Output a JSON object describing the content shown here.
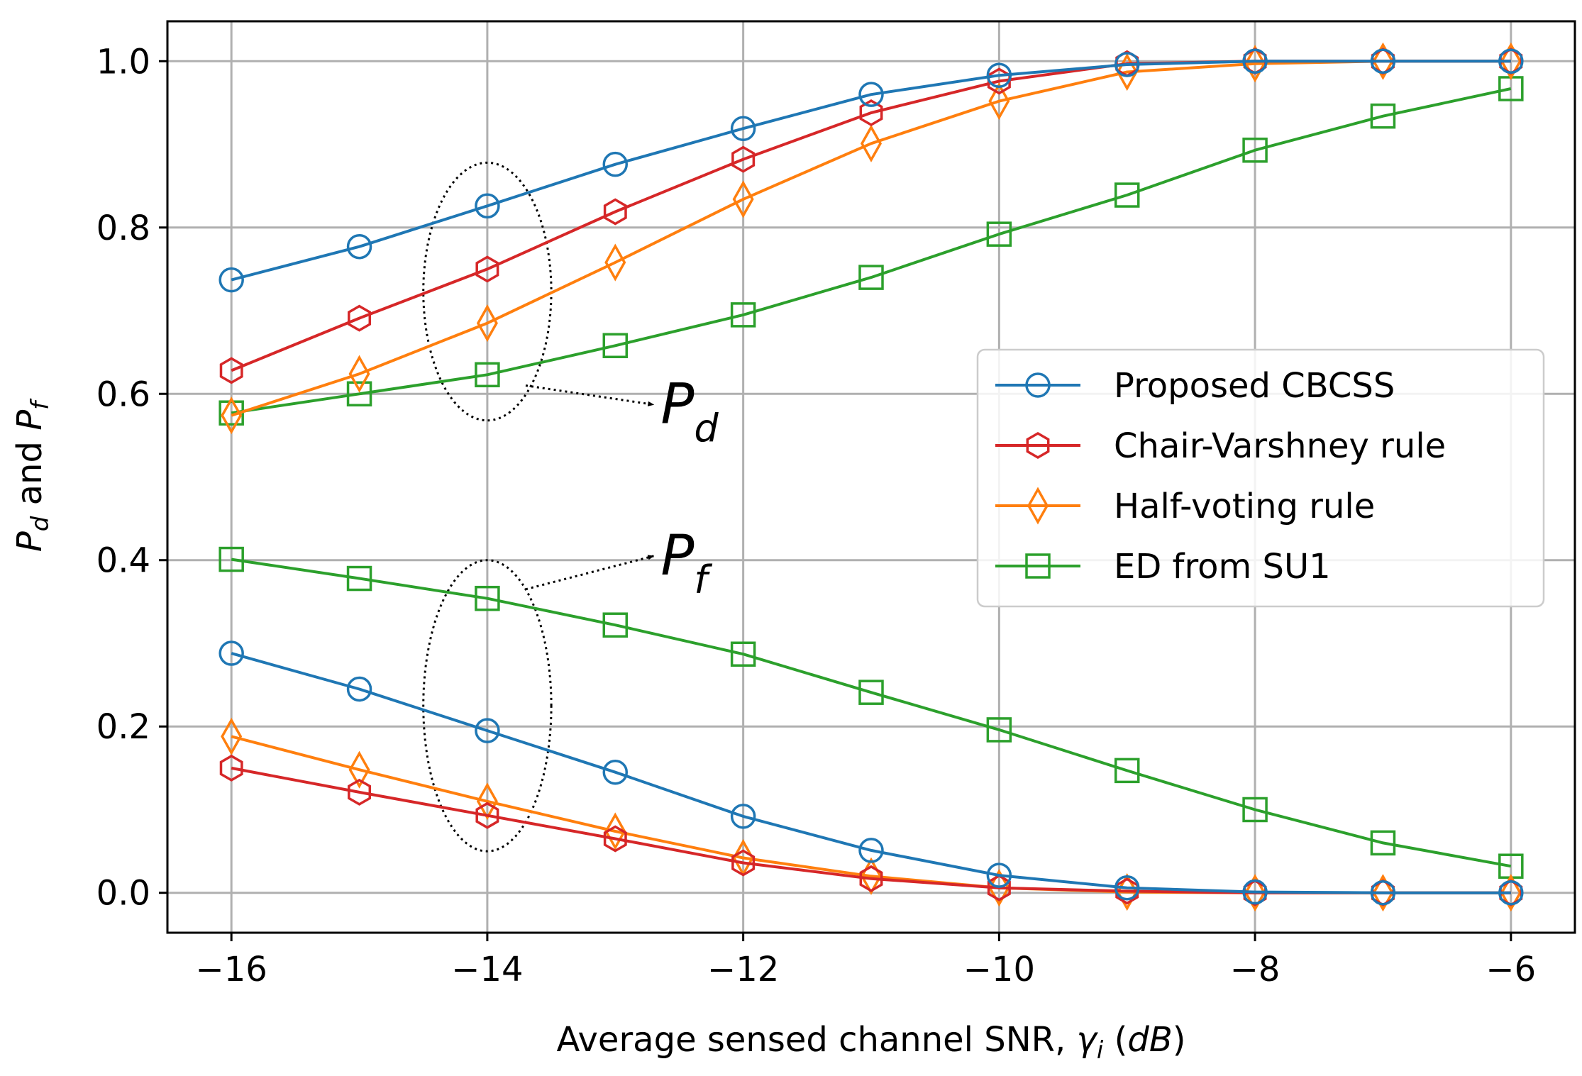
{
  "chart_data": {
    "type": "line",
    "xlabel_main": "Average sensed channel SNR, ",
    "xlabel_var": "γ",
    "xlabel_var_sub": "i",
    "xlabel_unit_open": " (",
    "xlabel_unit": "dB",
    "xlabel_unit_close": ")",
    "ylabel_p": "P",
    "ylabel_d": "d",
    "ylabel_and": " and ",
    "ylabel_f": "f",
    "xlim": [
      -16.5,
      -5.5
    ],
    "ylim": [
      -0.048,
      1.048
    ],
    "grid": true,
    "legend_position": "center-right",
    "x_ticks": [
      -16,
      -14,
      -12,
      -10,
      -8,
      -6
    ],
    "x_tick_labels": [
      "−16",
      "−14",
      "−12",
      "−10",
      "−8",
      "−6"
    ],
    "y_ticks": [
      0.0,
      0.2,
      0.4,
      0.6,
      0.8,
      1.0
    ],
    "y_tick_labels": [
      "0.0",
      "0.2",
      "0.4",
      "0.6",
      "0.8",
      "1.0"
    ],
    "x": [
      -16,
      -15,
      -14,
      -13,
      -12,
      -11,
      -10,
      -9,
      -8,
      -7,
      -6
    ],
    "series": [
      {
        "name": "Proposed CBCSS",
        "color": "#1f77b4",
        "marker": "circle",
        "pd": [
          0.737,
          0.777,
          0.826,
          0.876,
          0.919,
          0.96,
          0.983,
          0.996,
          1.0,
          1.0,
          1.0
        ],
        "pf": [
          0.288,
          0.245,
          0.195,
          0.145,
          0.092,
          0.051,
          0.021,
          0.006,
          0.001,
          0.0,
          0.0
        ]
      },
      {
        "name": "Chair-Varshney rule",
        "color": "#d62728",
        "marker": "hexagon",
        "pd": [
          0.628,
          0.691,
          0.75,
          0.819,
          0.882,
          0.938,
          0.976,
          0.997,
          1.0,
          1.0,
          1.0
        ],
        "pf": [
          0.15,
          0.121,
          0.093,
          0.065,
          0.036,
          0.017,
          0.006,
          0.002,
          0.0,
          0.0,
          0.0
        ]
      },
      {
        "name": "Half-voting rule",
        "color": "#ff7f0e",
        "marker": "diamond",
        "pd": [
          0.574,
          0.624,
          0.685,
          0.758,
          0.834,
          0.901,
          0.952,
          0.987,
          0.997,
          1.0,
          1.0
        ],
        "pf": [
          0.188,
          0.148,
          0.11,
          0.074,
          0.042,
          0.02,
          0.006,
          0.001,
          0.0,
          0.0,
          0.0
        ]
      },
      {
        "name": "ED from SU1",
        "color": "#2ca02c",
        "marker": "square",
        "pd": [
          0.577,
          0.6,
          0.623,
          0.658,
          0.695,
          0.74,
          0.792,
          0.839,
          0.893,
          0.934,
          0.967
        ],
        "pf": [
          0.401,
          0.378,
          0.354,
          0.322,
          0.287,
          0.241,
          0.196,
          0.147,
          0.1,
          0.06,
          0.032
        ]
      }
    ],
    "annotations": [
      {
        "main": "P",
        "sub": "d",
        "ellipse_center": [
          -14,
          0.723
        ],
        "ellipse_radii": [
          0.5,
          0.155
        ],
        "arrow_from": [
          -13.7,
          0.61
        ],
        "arrow_to": [
          -12.7,
          0.587
        ]
      },
      {
        "main": "P",
        "sub": "f",
        "ellipse_center": [
          -14,
          0.225
        ],
        "ellipse_radii": [
          0.5,
          0.175
        ],
        "arrow_from": [
          -13.7,
          0.365
        ],
        "arrow_to": [
          -12.7,
          0.405
        ]
      }
    ]
  }
}
